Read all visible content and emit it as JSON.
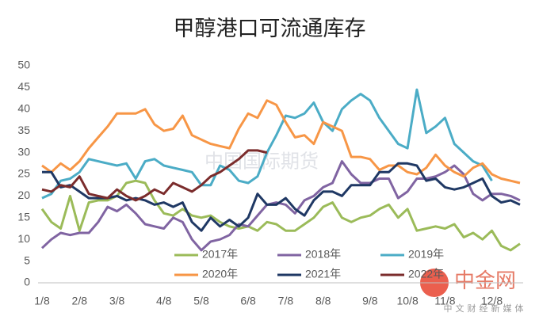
{
  "chart_data": {
    "type": "line",
    "title": "甲醇港口可流通库存",
    "categories": [
      "1/8",
      null,
      null,
      null,
      "2/8",
      null,
      null,
      null,
      "3/8",
      null,
      null,
      null,
      null,
      "4/8",
      null,
      null,
      null,
      "5/8",
      null,
      null,
      null,
      null,
      "6/8",
      null,
      null,
      null,
      "7/8",
      null,
      null,
      null,
      "8/8",
      null,
      null,
      null,
      null,
      "9/8",
      null,
      null,
      null,
      "10/8",
      null,
      null,
      null,
      "11/8",
      null,
      null,
      null,
      null,
      "12/8",
      null,
      null,
      null
    ],
    "ylim": [
      0,
      50
    ],
    "yticks": [
      0,
      5,
      10,
      15,
      20,
      25,
      30,
      35,
      40,
      45,
      50
    ],
    "grid": false,
    "legend": "bottom",
    "series": [
      {
        "name": "2017年",
        "color": "#9bbb59",
        "values": [
          17,
          14,
          12.5,
          20,
          12,
          18.5,
          19,
          19,
          20,
          23,
          23.5,
          23,
          19,
          16,
          15.5,
          17,
          15.5,
          15,
          15.5,
          14,
          13,
          12.5,
          13,
          12,
          14,
          13.5,
          12,
          12,
          13.5,
          15,
          17.5,
          18.5,
          15,
          14,
          15,
          15.5,
          17,
          18,
          15,
          17,
          12,
          12.5,
          13,
          12.5,
          13.5,
          10.5,
          11.5,
          10,
          12,
          8.5,
          7.5,
          9
        ]
      },
      {
        "name": "2018年",
        "color": "#8064a2",
        "values": [
          8,
          10,
          11.5,
          11,
          11.5,
          11.5,
          14,
          17.5,
          16.5,
          18,
          16,
          13.5,
          13,
          12.5,
          15,
          14,
          10,
          7.5,
          9.5,
          10,
          11,
          13.5,
          13,
          15.5,
          18,
          18.5,
          18,
          16,
          19,
          20,
          22,
          23,
          28,
          25,
          23,
          23,
          24,
          24,
          19.5,
          21,
          24,
          24,
          24.5,
          25.5,
          27,
          25,
          20.5,
          19,
          20.5,
          20.5,
          20,
          19
        ]
      },
      {
        "name": "2019年",
        "color": "#4bacc6",
        "values": [
          19.5,
          20.5,
          23.5,
          24,
          25.5,
          28.5,
          28,
          27.5,
          27,
          27.5,
          24,
          28,
          28.5,
          27,
          26.5,
          26,
          25.5,
          22.5,
          22.5,
          27,
          26,
          23.5,
          23,
          24.5,
          30,
          34,
          38.5,
          38,
          39,
          41.5,
          37,
          35,
          40,
          42,
          43.5,
          42,
          38,
          35,
          32,
          31,
          44.5,
          34.5,
          36,
          38,
          32,
          30,
          28,
          27,
          23.5,
          null,
          null,
          null
        ]
      },
      {
        "name": "2020年",
        "color": "#f79646",
        "values": [
          27,
          25.5,
          27.5,
          26,
          28,
          31,
          33.5,
          36,
          39,
          39,
          39,
          40,
          36.5,
          35,
          35.5,
          38.5,
          34,
          33,
          32,
          31.5,
          31,
          35.5,
          39,
          38,
          42,
          41,
          37,
          33.5,
          34,
          32,
          37,
          36,
          35,
          29,
          29,
          28.5,
          26,
          27,
          27,
          25.5,
          25,
          26.5,
          29.5,
          27,
          25.5,
          24.5,
          26.5,
          27.5,
          25,
          24,
          23.5,
          23
        ]
      },
      {
        "name": "2021年",
        "color": "#1f3864",
        "values": [
          25.5,
          25.5,
          22,
          22.5,
          21,
          19.5,
          19.5,
          19.5,
          20,
          19,
          19.5,
          19,
          18,
          18.5,
          17.5,
          18.5,
          14,
          12,
          15,
          13,
          14.5,
          13,
          15,
          20.5,
          18,
          18,
          19.5,
          17,
          15.5,
          19,
          21,
          21,
          20,
          22.5,
          22.5,
          22.5,
          25.5,
          25.5,
          27.5,
          27.5,
          27,
          23.5,
          24,
          22,
          21.5,
          22,
          23,
          24,
          20,
          18.5,
          19,
          18
        ]
      },
      {
        "name": "2022年",
        "color": "#7b2c2c",
        "values": [
          21.5,
          21,
          22.5,
          22,
          24.5,
          20.5,
          20,
          19.5,
          21.5,
          20,
          19,
          20,
          21.5,
          20.5,
          23,
          22,
          21,
          22.5,
          24.5,
          25.5,
          27,
          28.5,
          30.5,
          30.5,
          30,
          null,
          null,
          null,
          null,
          null,
          null,
          null,
          null,
          null,
          null,
          null,
          null,
          null,
          null,
          null,
          null,
          null,
          null,
          null,
          null,
          null,
          null,
          null,
          null,
          null,
          null,
          null
        ]
      }
    ]
  },
  "watermarks": {
    "center": "中国国际期货",
    "brand": "中金网",
    "slogan": "中文财经新媒体"
  }
}
